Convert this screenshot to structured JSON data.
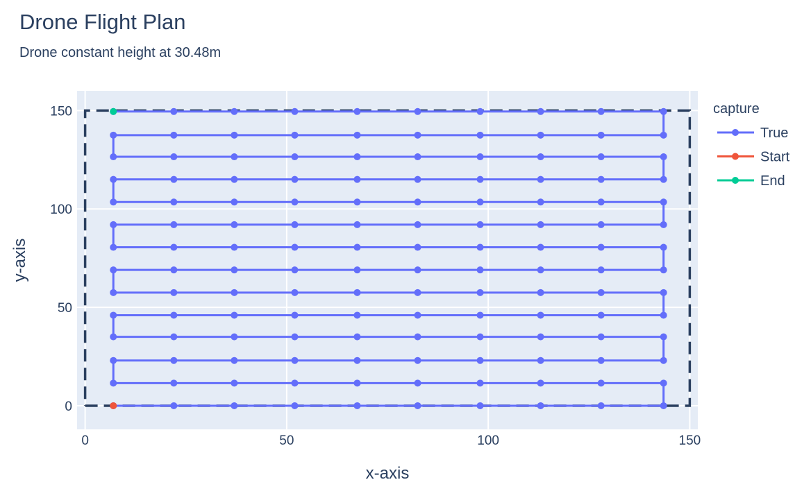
{
  "chart_data": {
    "type": "line",
    "title": "Drone Flight Plan",
    "subtitle": "Drone constant height at 30.48m",
    "xlabel": "x-axis",
    "ylabel": "y-axis",
    "xlim": [
      -2,
      152
    ],
    "ylim": [
      -12,
      160
    ],
    "xticks": [
      0,
      50,
      100,
      150
    ],
    "yticks": [
      0,
      50,
      100,
      150
    ],
    "grid": true,
    "legend_title": "capture",
    "legend_position": "top-right",
    "waypoint_x": [
      7,
      22,
      37,
      52,
      67.5,
      82.5,
      98,
      113,
      128,
      143.5
    ],
    "waypoint_y": [
      0,
      11.5,
      23,
      35,
      46,
      57.5,
      69,
      80.5,
      92,
      103.5,
      115,
      126.5,
      137.5,
      149.5
    ],
    "series": [
      {
        "name": "True",
        "color": "#636efa",
        "path": "serpentine"
      },
      {
        "name": "Start",
        "color": "#ef553b",
        "x": [
          7
        ],
        "y": [
          0
        ]
      },
      {
        "name": "End",
        "color": "#00cc96",
        "x": [
          7
        ],
        "y": [
          149.5
        ]
      }
    ],
    "boundary": {
      "x": [
        0,
        150,
        150,
        0,
        0
      ],
      "y": [
        0,
        0,
        150,
        150,
        0
      ],
      "color": "#2a3f5f",
      "style": "dashed"
    }
  }
}
